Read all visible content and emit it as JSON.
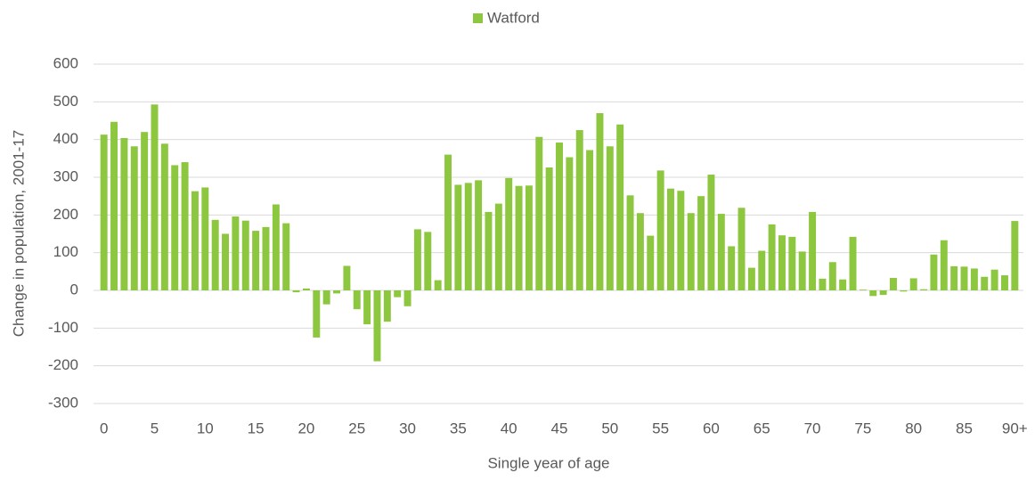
{
  "chart_data": {
    "type": "bar",
    "x_label": "Single year of age",
    "y_label": "Change in population, 2001-17",
    "categories": [
      "0",
      null,
      null,
      null,
      null,
      "5",
      null,
      null,
      null,
      null,
      "10",
      null,
      null,
      null,
      null,
      "15",
      null,
      null,
      null,
      null,
      "20",
      null,
      null,
      null,
      null,
      "25",
      null,
      null,
      null,
      null,
      "30",
      null,
      null,
      null,
      null,
      "35",
      null,
      null,
      null,
      null,
      "40",
      null,
      null,
      null,
      null,
      "45",
      null,
      null,
      null,
      null,
      "50",
      null,
      null,
      null,
      null,
      "55",
      null,
      null,
      null,
      null,
      "60",
      null,
      null,
      null,
      null,
      "65",
      null,
      null,
      null,
      null,
      "70",
      null,
      null,
      null,
      null,
      "75",
      null,
      null,
      null,
      null,
      "80",
      null,
      null,
      null,
      null,
      "85",
      null,
      null,
      null,
      null,
      "90+"
    ],
    "series": [
      {
        "name": "Watford",
        "color": "#8dc63f",
        "values": [
          413,
          447,
          404,
          382,
          420,
          493,
          389,
          332,
          340,
          263,
          273,
          187,
          150,
          196,
          185,
          158,
          168,
          228,
          178,
          -5,
          5,
          -125,
          -37,
          -8,
          65,
          -50,
          -90,
          -188,
          -83,
          -18,
          -42,
          162,
          155,
          27,
          360,
          280,
          285,
          292,
          208,
          230,
          298,
          277,
          278,
          407,
          326,
          392,
          353,
          425,
          372,
          470,
          382,
          440,
          252,
          205,
          145,
          318,
          270,
          264,
          205,
          250,
          307,
          203,
          117,
          219,
          60,
          105,
          175,
          146,
          142,
          103,
          208,
          31,
          75,
          29,
          142,
          2,
          -15,
          -12,
          33,
          -3,
          32,
          3,
          95,
          133,
          64,
          63,
          58,
          36,
          55,
          40,
          184
        ]
      }
    ],
    "ylim": [
      -300,
      600
    ],
    "yticks": [
      -300,
      -200,
      -100,
      0,
      100,
      200,
      300,
      400,
      500,
      600
    ],
    "grid": true,
    "legend": "top"
  }
}
